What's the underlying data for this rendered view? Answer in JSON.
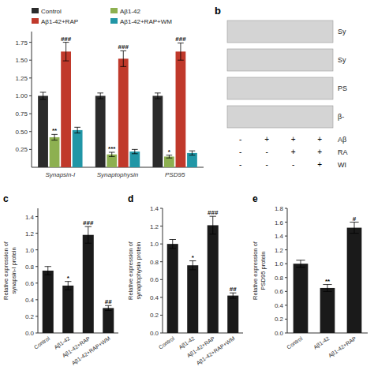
{
  "chart_data": [
    {
      "type": "bar",
      "categories": [
        "Synapsin-I",
        "Synaptophysin",
        "PSD95"
      ],
      "series": [
        {
          "name": "Control",
          "color": "#2b2b2b",
          "values": [
            1.0,
            1.0,
            1.0
          ],
          "errors": [
            0.05,
            0.04,
            0.04
          ],
          "annotations": [
            null,
            null,
            null
          ]
        },
        {
          "name": "Aβ1-42",
          "color": "#8db050",
          "values": [
            0.42,
            0.18,
            0.15
          ],
          "errors": [
            0.04,
            0.03,
            0.02
          ],
          "annotations": [
            "**",
            "***",
            "*"
          ]
        },
        {
          "name": "Aβ1-42+RAP",
          "color": "#c0392b",
          "values": [
            1.62,
            1.52,
            1.62
          ],
          "errors": [
            0.13,
            0.11,
            0.12
          ],
          "annotations": [
            "###",
            "###",
            "###"
          ]
        },
        {
          "name": "Aβ1-42+RAP+WM",
          "color": "#2196a6",
          "values": [
            0.52,
            0.22,
            0.2
          ],
          "errors": [
            0.04,
            0.03,
            0.03
          ],
          "annotations": [
            null,
            null,
            null
          ]
        }
      ],
      "ylim": [
        0,
        1.9
      ],
      "yticks": [
        0.25,
        {
          "value": 0.5,
          "label": "0.50"
        },
        0.75,
        {
          "value": 1.0,
          "label": "1.00"
        },
        1.25,
        {
          "value": 1.5,
          "label": "1.50"
        },
        1.75
      ],
      "legend": "upper left"
    },
    {
      "type": "table",
      "title": "b",
      "row_labels": [
        "Sy",
        "Sy",
        "PS",
        "β-"
      ],
      "sign_labels": [
        "Aβ",
        "RA",
        "WI"
      ],
      "signs": [
        [
          "-",
          "+",
          "+",
          "+"
        ],
        [
          "-",
          "-",
          "+",
          "+"
        ],
        [
          "-",
          "-",
          "-",
          "+"
        ]
      ]
    },
    {
      "type": "bar",
      "title": "c",
      "categories": [
        "Control",
        "Aβ1-42",
        "Aβ1-42+RAP",
        "Aβ1-42+RAP+WM"
      ],
      "values": [
        0.75,
        0.57,
        1.18,
        0.3
      ],
      "errors": [
        0.05,
        0.05,
        0.1,
        0.03
      ],
      "annotations": [
        null,
        "*",
        "###",
        "##"
      ],
      "ylabel": "Relative expression of\nsynapsin-I protein",
      "ylim": [
        0,
        1.5
      ],
      "yticks": [
        {
          "value": 0,
          "label": "0.0"
        },
        0.2,
        0.4,
        0.6,
        0.8,
        {
          "value": 1.0,
          "label": "1.0"
        },
        1.2,
        1.4
      ],
      "color": "#1a1a1a"
    },
    {
      "type": "bar",
      "title": "d",
      "categories": [
        "Control",
        "Aβ1-42",
        "Aβ1-42+RAP",
        "Aβ1-42+RAP+WM"
      ],
      "values": [
        1.0,
        0.76,
        1.21,
        0.42
      ],
      "errors": [
        0.05,
        0.05,
        0.1,
        0.03
      ],
      "annotations": [
        null,
        "*",
        "###",
        "##"
      ],
      "ylabel": "Relative expression of\nsynaptophysin protein",
      "ylim": [
        0,
        1.4
      ],
      "yticks": [
        {
          "value": 0,
          "label": "0.0"
        },
        0.2,
        0.4,
        0.6,
        0.8,
        {
          "value": 1.0,
          "label": "1.0"
        },
        1.2,
        1.4
      ],
      "color": "#1a1a1a"
    },
    {
      "type": "bar",
      "title": "e",
      "categories": [
        "Control",
        "Aβ1-42",
        "Aβ1-42+RAP"
      ],
      "values": [
        1.0,
        0.65,
        1.52
      ],
      "errors": [
        0.05,
        0.05,
        0.08
      ],
      "annotations": [
        null,
        "**",
        "#"
      ],
      "ylabel": "Relative expression of\nPSD95 protein",
      "ylim": [
        0,
        1.8
      ],
      "yticks": [
        {
          "value": 0,
          "label": "0.0"
        },
        0.2,
        0.4,
        0.6,
        0.8,
        {
          "value": 1.0,
          "label": "1.0"
        },
        1.2,
        1.4,
        1.6,
        1.8
      ],
      "color": "#1a1a1a"
    }
  ]
}
